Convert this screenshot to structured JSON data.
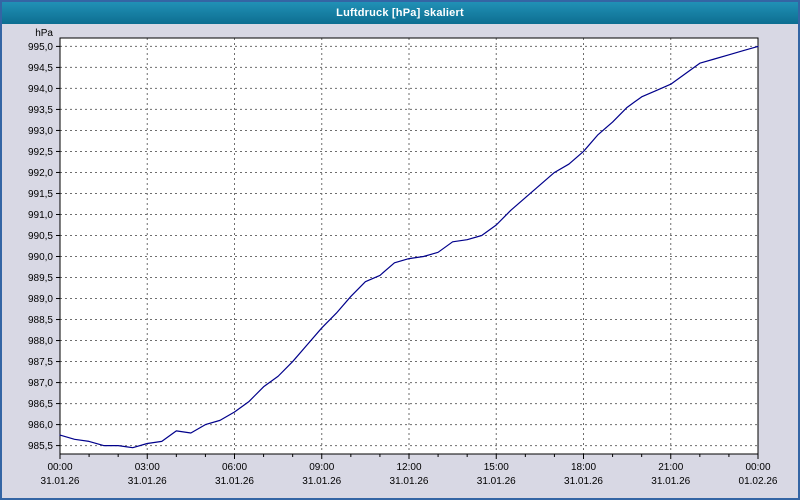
{
  "window": {
    "title": "Luftdruck [hPa] skaliert"
  },
  "chart_data": {
    "type": "line",
    "title": "Luftdruck [hPa] skaliert",
    "ylabel": "hPa",
    "xlabel": "",
    "ylim": [
      985.3,
      995.2
    ],
    "xlim_hours": [
      0,
      24
    ],
    "grid": "dashed",
    "legend_position": "none",
    "colors": {
      "line": "#00008b",
      "plot_bg": "#ffffff",
      "grid": "#6e6e6e",
      "axis": "#000000",
      "text": "#000000"
    },
    "y_ticks": [
      {
        "value": 995.0,
        "label": "995,0"
      },
      {
        "value": 994.5,
        "label": "994,5"
      },
      {
        "value": 994.0,
        "label": "994,0"
      },
      {
        "value": 993.5,
        "label": "993,5"
      },
      {
        "value": 993.0,
        "label": "993,0"
      },
      {
        "value": 992.5,
        "label": "992,5"
      },
      {
        "value": 992.0,
        "label": "992,0"
      },
      {
        "value": 991.5,
        "label": "991,5"
      },
      {
        "value": 991.0,
        "label": "991,0"
      },
      {
        "value": 990.5,
        "label": "990,5"
      },
      {
        "value": 990.0,
        "label": "990,0"
      },
      {
        "value": 989.5,
        "label": "989,5"
      },
      {
        "value": 989.0,
        "label": "989,0"
      },
      {
        "value": 988.5,
        "label": "988,5"
      },
      {
        "value": 988.0,
        "label": "988,0"
      },
      {
        "value": 987.5,
        "label": "987,5"
      },
      {
        "value": 987.0,
        "label": "987,0"
      },
      {
        "value": 986.5,
        "label": "986,5"
      },
      {
        "value": 986.0,
        "label": "986,0"
      },
      {
        "value": 985.5,
        "label": "985,5"
      }
    ],
    "x_ticks": [
      {
        "hour": 0,
        "time": "00:00",
        "date": "31.01.26"
      },
      {
        "hour": 3,
        "time": "03:00",
        "date": "31.01.26"
      },
      {
        "hour": 6,
        "time": "06:00",
        "date": "31.01.26"
      },
      {
        "hour": 9,
        "time": "09:00",
        "date": "31.01.26"
      },
      {
        "hour": 12,
        "time": "12:00",
        "date": "31.01.26"
      },
      {
        "hour": 15,
        "time": "15:00",
        "date": "31.01.26"
      },
      {
        "hour": 18,
        "time": "18:00",
        "date": "31.01.26"
      },
      {
        "hour": 21,
        "time": "21:00",
        "date": "31.01.26"
      },
      {
        "hour": 24,
        "time": "00:00",
        "date": "01.02.26"
      }
    ],
    "series": [
      {
        "name": "Luftdruck [hPa]",
        "x_hours": [
          0,
          0.5,
          1,
          1.5,
          2,
          2.5,
          3,
          3.5,
          4,
          4.5,
          5,
          5.5,
          6,
          6.5,
          7,
          7.5,
          8,
          8.5,
          9,
          9.5,
          10,
          10.5,
          11,
          11.5,
          12,
          12.5,
          13,
          13.5,
          14,
          14.5,
          15,
          15.5,
          16,
          16.5,
          17,
          17.5,
          18,
          18.5,
          19,
          19.5,
          20,
          20.5,
          21,
          21.5,
          22,
          22.5,
          23,
          23.5,
          24
        ],
        "values": [
          985.75,
          985.65,
          985.6,
          985.5,
          985.5,
          985.45,
          985.55,
          985.6,
          985.85,
          985.8,
          986.0,
          986.1,
          986.3,
          986.55,
          986.9,
          987.15,
          987.5,
          987.9,
          988.3,
          988.65,
          989.05,
          989.4,
          989.55,
          989.85,
          989.95,
          990.0,
          990.1,
          990.35,
          990.4,
          990.5,
          990.75,
          991.1,
          991.4,
          991.7,
          992.0,
          992.2,
          992.5,
          992.9,
          993.2,
          993.55,
          993.8,
          993.95,
          994.1,
          994.35,
          994.6,
          994.7,
          994.8,
          994.9,
          995.0
        ]
      }
    ]
  }
}
